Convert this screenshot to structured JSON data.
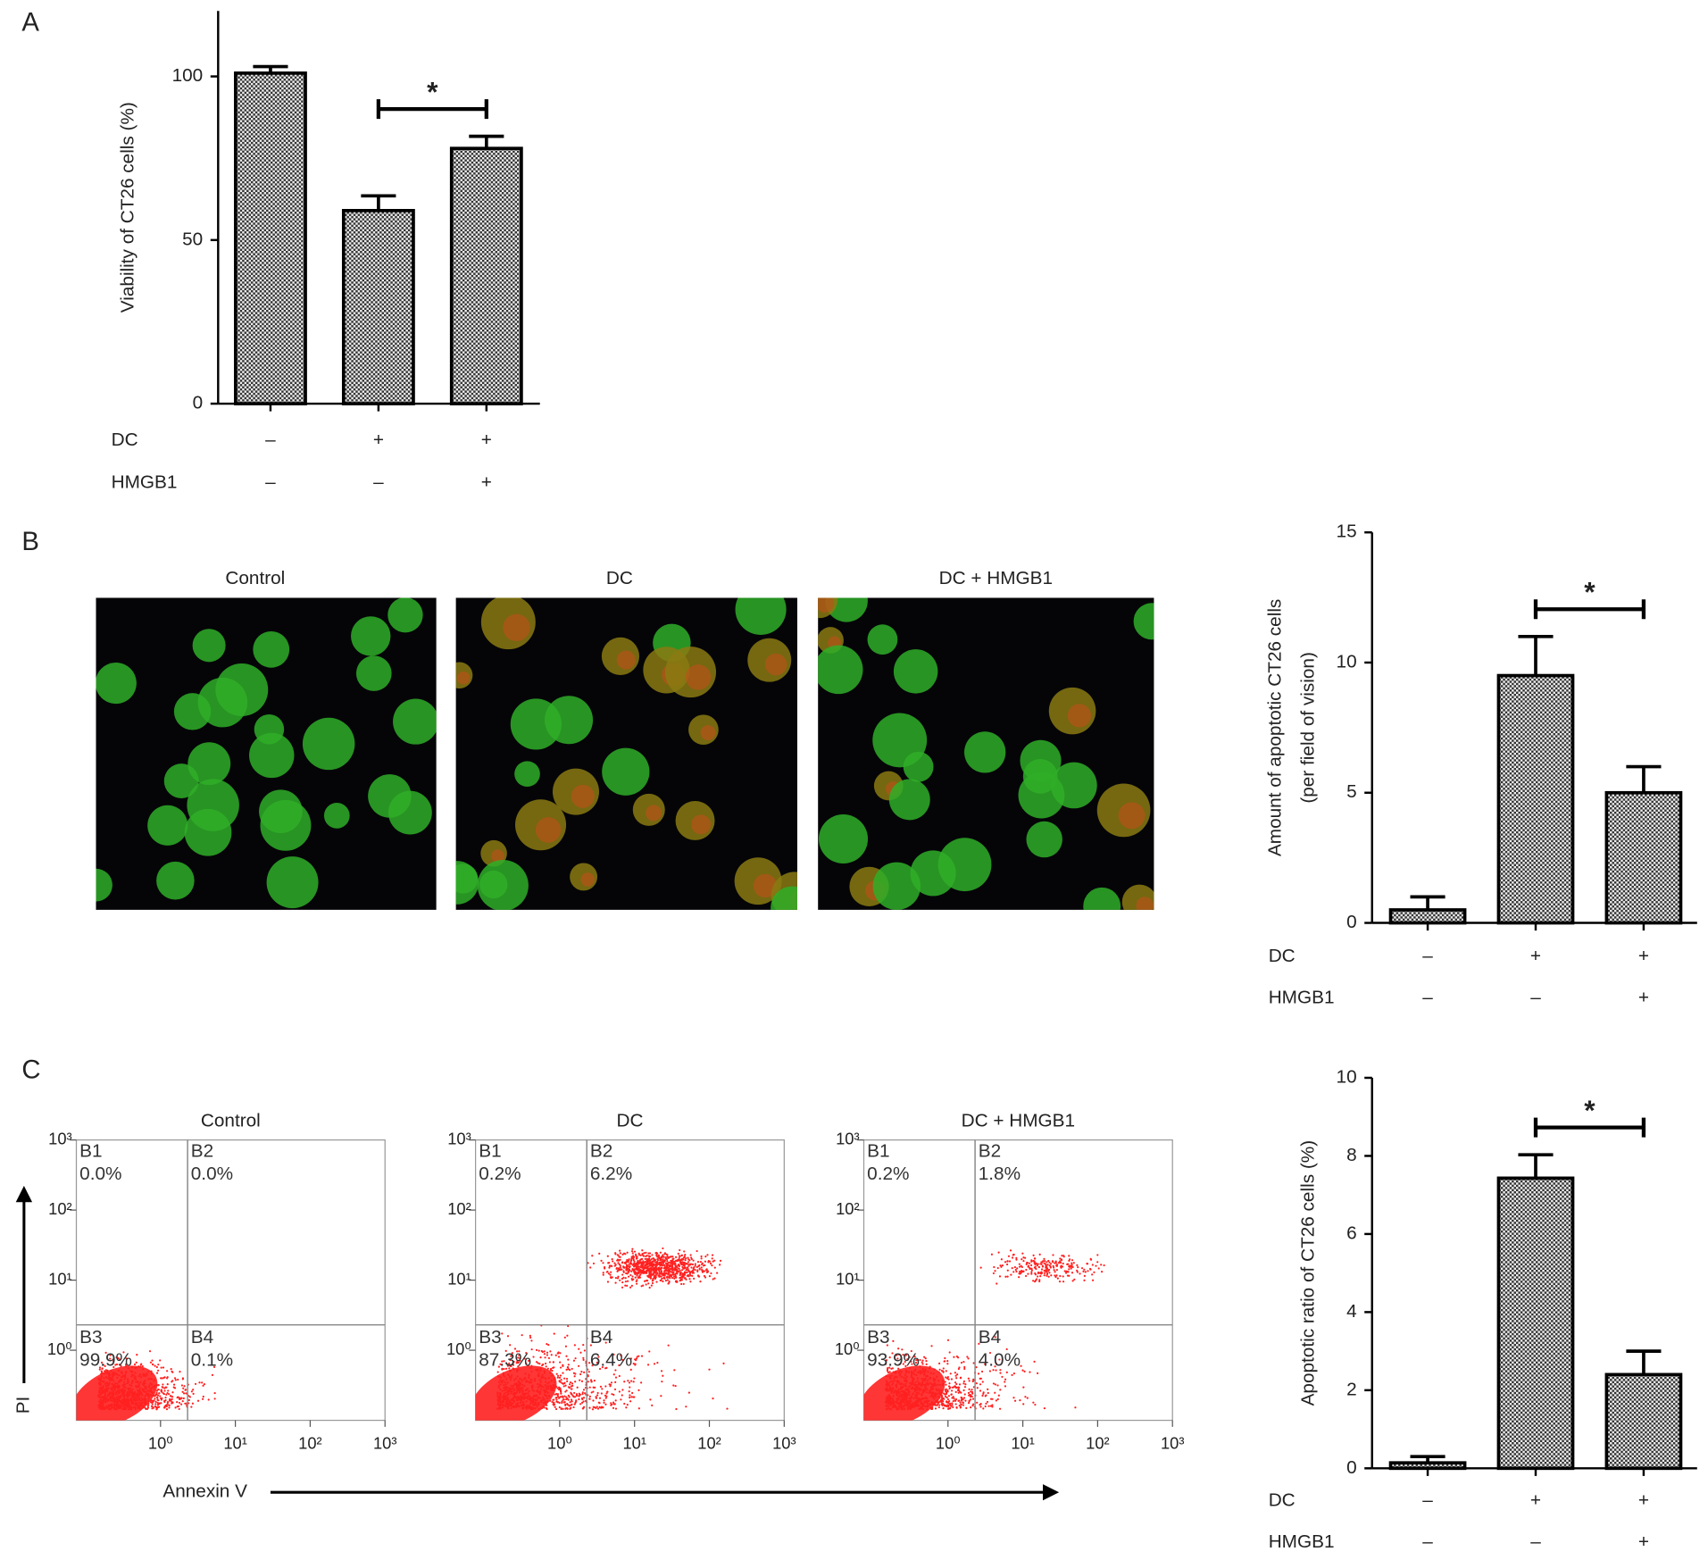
{
  "panel_labels": [
    "A",
    "B",
    "C"
  ],
  "micrographs": {
    "titles": [
      "Control",
      "DC",
      "DC + HMGB1"
    ]
  },
  "flow_axes": {
    "x_label": "Annexin V",
    "y_label": "PI"
  },
  "chart_data": [
    {
      "type": "bar",
      "y_label": [
        "Viability of CT26 cells (%)"
      ],
      "conditions": [
        {
          "name": "DC",
          "levels": [
            "–",
            "+",
            "+"
          ]
        },
        {
          "name": "HMGB1",
          "levels": [
            "–",
            "–",
            "+"
          ]
        }
      ],
      "values": [
        101,
        59,
        78
      ],
      "errors": [
        2,
        4.5,
        3.7
      ],
      "color": "#555555",
      "ylim": [
        0,
        120
      ],
      "yticks": [
        0,
        50,
        100
      ],
      "annotation": "*"
    },
    {
      "type": "bar",
      "y_label": [
        "Amount of apoptotic CT26 cells",
        "(per field of vision)"
      ],
      "conditions": [
        {
          "name": "DC",
          "levels": [
            "–",
            "+",
            "+"
          ]
        },
        {
          "name": "HMGB1",
          "levels": [
            "–",
            "–",
            "+"
          ]
        }
      ],
      "values": [
        0.5,
        9.5,
        5.0
      ],
      "errors": [
        0.5,
        1.5,
        1.0
      ],
      "color": "#555555",
      "ylim": [
        0,
        15
      ],
      "yticks": [
        0,
        5,
        10,
        15
      ],
      "annotation": "*"
    },
    {
      "type": "bar",
      "y_label": [
        "Apoptotic ratio of CT26 cells (%)"
      ],
      "conditions": [
        {
          "name": "DC",
          "levels": [
            "–",
            "+",
            "+"
          ]
        },
        {
          "name": "HMGB1",
          "levels": [
            "–",
            "–",
            "+"
          ]
        }
      ],
      "values": [
        0.14,
        7.43,
        2.4
      ],
      "errors": [
        0.16,
        0.6,
        0.6
      ],
      "color": "#555555",
      "ylim": [
        0,
        10
      ],
      "yticks": [
        0,
        2,
        4,
        6,
        8,
        10
      ],
      "annotation": "*"
    },
    {
      "type": "flow",
      "title": "Control",
      "log_scale": true,
      "color": "#ff2020",
      "xlim": [
        0.075,
        1000
      ],
      "ylim": [
        0.1,
        1000
      ],
      "xticks": [
        {
          "value": 1,
          "label": "10⁰"
        },
        {
          "value": 10,
          "label": "10¹"
        },
        {
          "value": 100,
          "label": "10²"
        },
        {
          "value": 1000,
          "label": "10³"
        }
      ],
      "yticks": [
        {
          "value": 1,
          "label": "10⁰"
        },
        {
          "value": 10,
          "label": "10¹"
        },
        {
          "value": 100,
          "label": "10²"
        },
        {
          "value": 1000,
          "label": "10³"
        }
      ],
      "gates": {
        "x": 2.3,
        "y": 2.3
      },
      "quadrants": {
        "names": [
          "B1",
          "B2",
          "B3",
          "B4"
        ],
        "values": [
          0.0,
          0.0,
          99.9,
          0.1
        ],
        "value_labels": [
          "0.0%",
          "0.0%",
          "99.9%",
          "0.1%"
        ]
      }
    },
    {
      "type": "flow",
      "title": "DC",
      "log_scale": true,
      "color": "#ff2020",
      "xlim": [
        0.075,
        1000
      ],
      "ylim": [
        0.1,
        1000
      ],
      "xticks": [
        {
          "value": 1,
          "label": "10⁰"
        },
        {
          "value": 10,
          "label": "10¹"
        },
        {
          "value": 100,
          "label": "10²"
        },
        {
          "value": 1000,
          "label": "10³"
        }
      ],
      "yticks": [
        {
          "value": 1,
          "label": "10⁰"
        },
        {
          "value": 10,
          "label": "10¹"
        },
        {
          "value": 100,
          "label": "10²"
        },
        {
          "value": 1000,
          "label": "10³"
        }
      ],
      "gates": {
        "x": 2.3,
        "y": 2.3
      },
      "quadrants": {
        "names": [
          "B1",
          "B2",
          "B3",
          "B4"
        ],
        "values": [
          0.2,
          6.2,
          87.3,
          6.4
        ],
        "value_labels": [
          "0.2%",
          "6.2%",
          "87.3%",
          "6.4%"
        ]
      }
    },
    {
      "type": "flow",
      "title": "DC + HMGB1",
      "log_scale": true,
      "color": "#ff2020",
      "xlim": [
        0.075,
        1000
      ],
      "ylim": [
        0.1,
        1000
      ],
      "xticks": [
        {
          "value": 1,
          "label": "10⁰"
        },
        {
          "value": 10,
          "label": "10¹"
        },
        {
          "value": 100,
          "label": "10²"
        },
        {
          "value": 1000,
          "label": "10³"
        }
      ],
      "yticks": [
        {
          "value": 1,
          "label": "10⁰"
        },
        {
          "value": 10,
          "label": "10¹"
        },
        {
          "value": 100,
          "label": "10²"
        },
        {
          "value": 1000,
          "label": "10³"
        }
      ],
      "gates": {
        "x": 2.3,
        "y": 2.3
      },
      "quadrants": {
        "names": [
          "B1",
          "B2",
          "B3",
          "B4"
        ],
        "values": [
          0.2,
          1.8,
          93.9,
          4.0
        ],
        "value_labels": [
          "0.2%",
          "1.8%",
          "93.9%",
          "4.0%"
        ]
      }
    }
  ]
}
